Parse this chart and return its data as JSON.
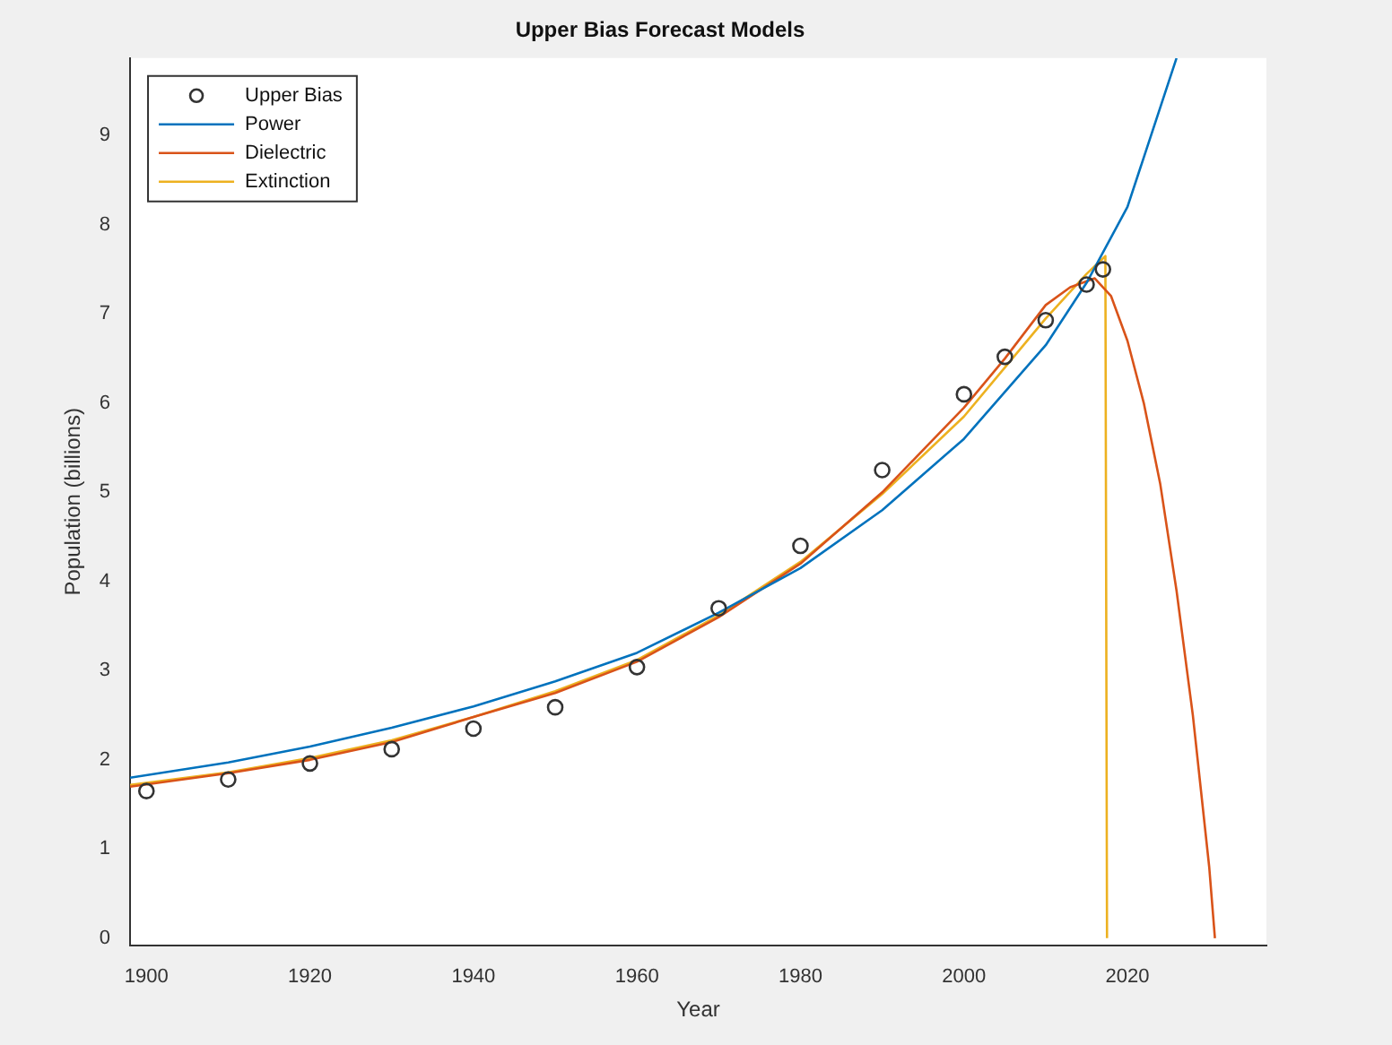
{
  "chart_data": {
    "type": "line",
    "title": "Upper Bias Forecast Models",
    "xlabel": "Year",
    "ylabel": "Population (billions)",
    "xlim": [
      1898,
      2037
    ],
    "ylim": [
      -0.08,
      9.87
    ],
    "xticks": [
      1900,
      1920,
      1940,
      1960,
      1980,
      2000,
      2020
    ],
    "yticks": [
      0,
      1,
      2,
      3,
      4,
      5,
      6,
      7,
      8,
      9
    ],
    "grid": false,
    "legend": "top left",
    "series": [
      {
        "name": "Upper Bias",
        "type": "scatter",
        "marker": "circle",
        "color": "#333333",
        "x": [
          1900,
          1910,
          1920,
          1930,
          1940,
          1950,
          1960,
          1970,
          1980,
          1990,
          2000,
          2005,
          2010,
          2015,
          2017
        ],
        "values": [
          1.65,
          1.78,
          1.96,
          2.12,
          2.35,
          2.59,
          3.04,
          3.7,
          4.4,
          5.25,
          6.1,
          6.52,
          6.93,
          7.33,
          7.5
        ]
      },
      {
        "name": "Power",
        "type": "line",
        "marker": "none",
        "color": "#0072bd",
        "x": [
          1898,
          1910,
          1920,
          1930,
          1940,
          1950,
          1960,
          1970,
          1980,
          1990,
          2000,
          2010,
          2015,
          2020,
          2026
        ],
        "values": [
          1.8,
          1.97,
          2.15,
          2.36,
          2.6,
          2.88,
          3.2,
          3.65,
          4.15,
          4.8,
          5.6,
          6.65,
          7.35,
          8.2,
          9.87
        ]
      },
      {
        "name": "Dielectric",
        "type": "line",
        "marker": "none",
        "color": "#d95319",
        "x": [
          1898,
          1910,
          1920,
          1930,
          1940,
          1950,
          1960,
          1970,
          1980,
          1990,
          2000,
          2005,
          2010,
          2013,
          2016,
          2018,
          2020,
          2022,
          2024,
          2026,
          2028,
          2030,
          2030.7
        ],
        "values": [
          1.7,
          1.85,
          2.0,
          2.2,
          2.48,
          2.75,
          3.1,
          3.6,
          4.2,
          5.0,
          5.95,
          6.5,
          7.1,
          7.3,
          7.4,
          7.2,
          6.7,
          6.0,
          5.1,
          3.9,
          2.5,
          0.8,
          0
        ]
      },
      {
        "name": "Extinction",
        "type": "line",
        "marker": "none",
        "color": "#edb120",
        "x": [
          1898,
          1910,
          1920,
          1930,
          1940,
          1950,
          1960,
          1970,
          1980,
          1990,
          2000,
          2005,
          2010,
          2015,
          2017.3,
          2017.5
        ],
        "values": [
          1.72,
          1.86,
          2.02,
          2.22,
          2.48,
          2.77,
          3.12,
          3.62,
          4.22,
          4.98,
          5.85,
          6.4,
          6.95,
          7.45,
          7.65,
          0
        ]
      }
    ]
  }
}
